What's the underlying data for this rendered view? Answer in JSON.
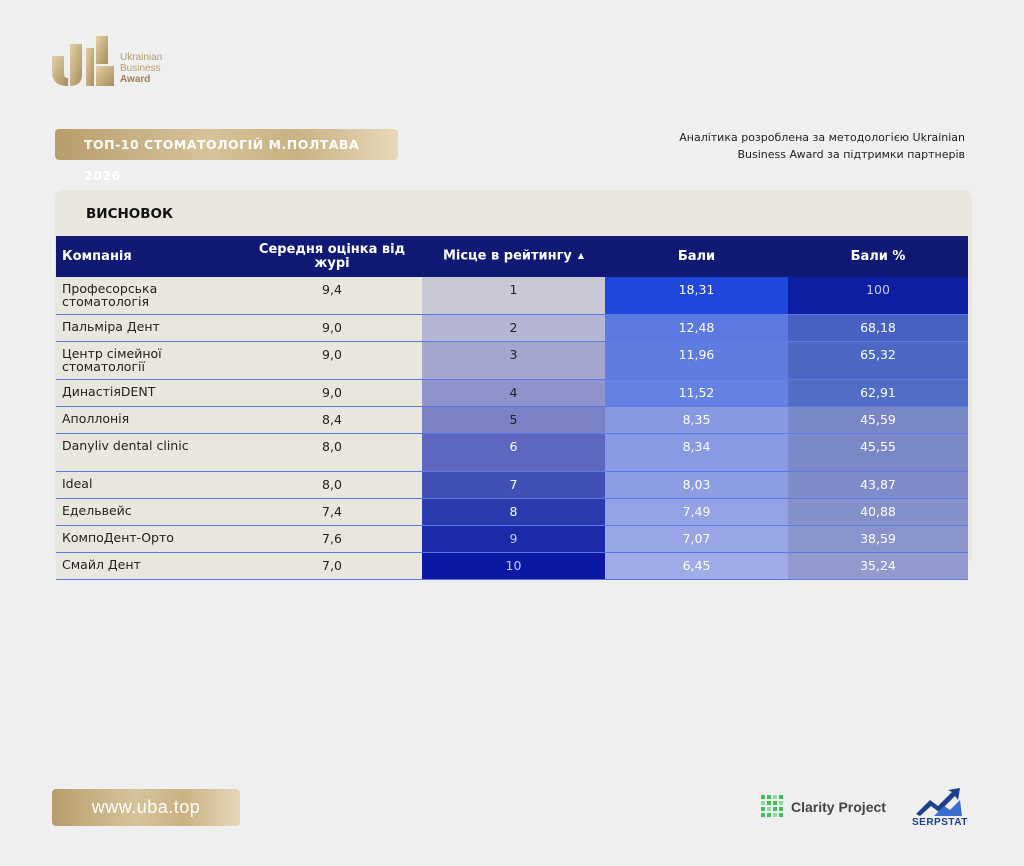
{
  "brand": {
    "logo_lines": [
      "Ukrainian",
      "Business",
      "Award"
    ],
    "gold": "#c9b182"
  },
  "header": {
    "title": "ТОП-10 СТОМАТОЛОГІЙ М.ПОЛТАВА 2026",
    "subtitle_line1": "Аналітика розроблена за методологією Ukrainian",
    "subtitle_line2": "Business Award за підтримки партнерів"
  },
  "panel": {
    "title": "ВИСНОВОК"
  },
  "table": {
    "columns": [
      "Компанія",
      "Середня оцінка від журі",
      "Місце в рейтингу",
      "Бали",
      "Бали %"
    ],
    "sort_indicator": "▲",
    "rows": [
      {
        "company": "Професорська стоматологія",
        "jury": "9,4",
        "place": "1",
        "score": "18,31",
        "percent": "100",
        "place_bg": "#c9c8d6",
        "score_bg": "#2046dc",
        "percent_bg": "#0c1fa2",
        "place_color": "#222",
        "score_color": "#ffffff",
        "percent_color": "#c8ccee"
      },
      {
        "company": "Пальміра Дент",
        "jury": "9,0",
        "place": "2",
        "score": "12,48",
        "percent": "68,18",
        "place_bg": "#b3b5d2",
        "score_bg": "#5b79e0",
        "percent_bg": "#4762c2",
        "place_color": "#222",
        "score_color": "#ffffff",
        "percent_color": "#ffffff"
      },
      {
        "company": "Центр сімейної стоматології",
        "jury": "9,0",
        "place": "3",
        "score": "11,96",
        "percent": "65,32",
        "place_bg": "#a3a6cf",
        "score_bg": "#5f7de0",
        "percent_bg": "#4d68c4",
        "place_color": "#222",
        "score_color": "#ffffff",
        "percent_color": "#ffffff"
      },
      {
        "company": "ДинастіяDENT",
        "jury": "9,0",
        "place": "4",
        "score": "11,52",
        "percent": "62,91",
        "place_bg": "#8e94cb",
        "score_bg": "#6382e2",
        "percent_bg": "#526dc6",
        "place_color": "#222",
        "score_color": "#ffffff",
        "percent_color": "#ffffff"
      },
      {
        "company": "Аполлонія",
        "jury": "8,4",
        "place": "5",
        "score": "8,35",
        "percent": "45,59",
        "place_bg": "#7a81c4",
        "score_bg": "#8799e3",
        "percent_bg": "#7a87c7",
        "place_color": "#222",
        "score_color": "#ffffff",
        "percent_color": "#ffffff"
      },
      {
        "company": "Danyliv dental clinic",
        "jury": "8,0",
        "place": "6",
        "score": "8,34",
        "percent": "45,55",
        "place_bg": "#5d67bf",
        "score_bg": "#889ae3",
        "percent_bg": "#7b88c8",
        "place_color": "#ffffff",
        "score_color": "#ffffff",
        "percent_color": "#ffffff"
      },
      {
        "company": "Ideal",
        "jury": "8,0",
        "place": "7",
        "score": "8,03",
        "percent": "43,87",
        "place_bg": "#4150b5",
        "score_bg": "#8c9de4",
        "percent_bg": "#7f8bc9",
        "place_color": "#ffffff",
        "score_color": "#ffffff",
        "percent_color": "#ffffff"
      },
      {
        "company": "Едельвейс",
        "jury": "7,4",
        "place": "8",
        "score": "7,49",
        "percent": "40,88",
        "place_bg": "#2b3bae",
        "score_bg": "#93a2e5",
        "percent_bg": "#8590cb",
        "place_color": "#ffffff",
        "score_color": "#ffffff",
        "percent_color": "#ffffff"
      },
      {
        "company": "КомпоДент-Орто",
        "jury": "7,6",
        "place": "9",
        "score": "7,07",
        "percent": "38,59",
        "place_bg": "#1a2aa9",
        "score_bg": "#98a6e6",
        "percent_bg": "#8a94cc",
        "place_color": "#c8ccee",
        "score_color": "#ffffff",
        "percent_color": "#ffffff"
      },
      {
        "company": "Смайл Дент",
        "jury": "7,0",
        "place": "10",
        "score": "6,45",
        "percent": "35,24",
        "place_bg": "#0a18a4",
        "score_bg": "#a0ace7",
        "percent_bg": "#9199cf",
        "place_color": "#c8ccee",
        "score_color": "#ffffff",
        "percent_color": "#ffffff"
      }
    ]
  },
  "footer": {
    "url": "www.uba.top",
    "partner1": "Clarity Project",
    "partner2": "SERPSTAT"
  }
}
